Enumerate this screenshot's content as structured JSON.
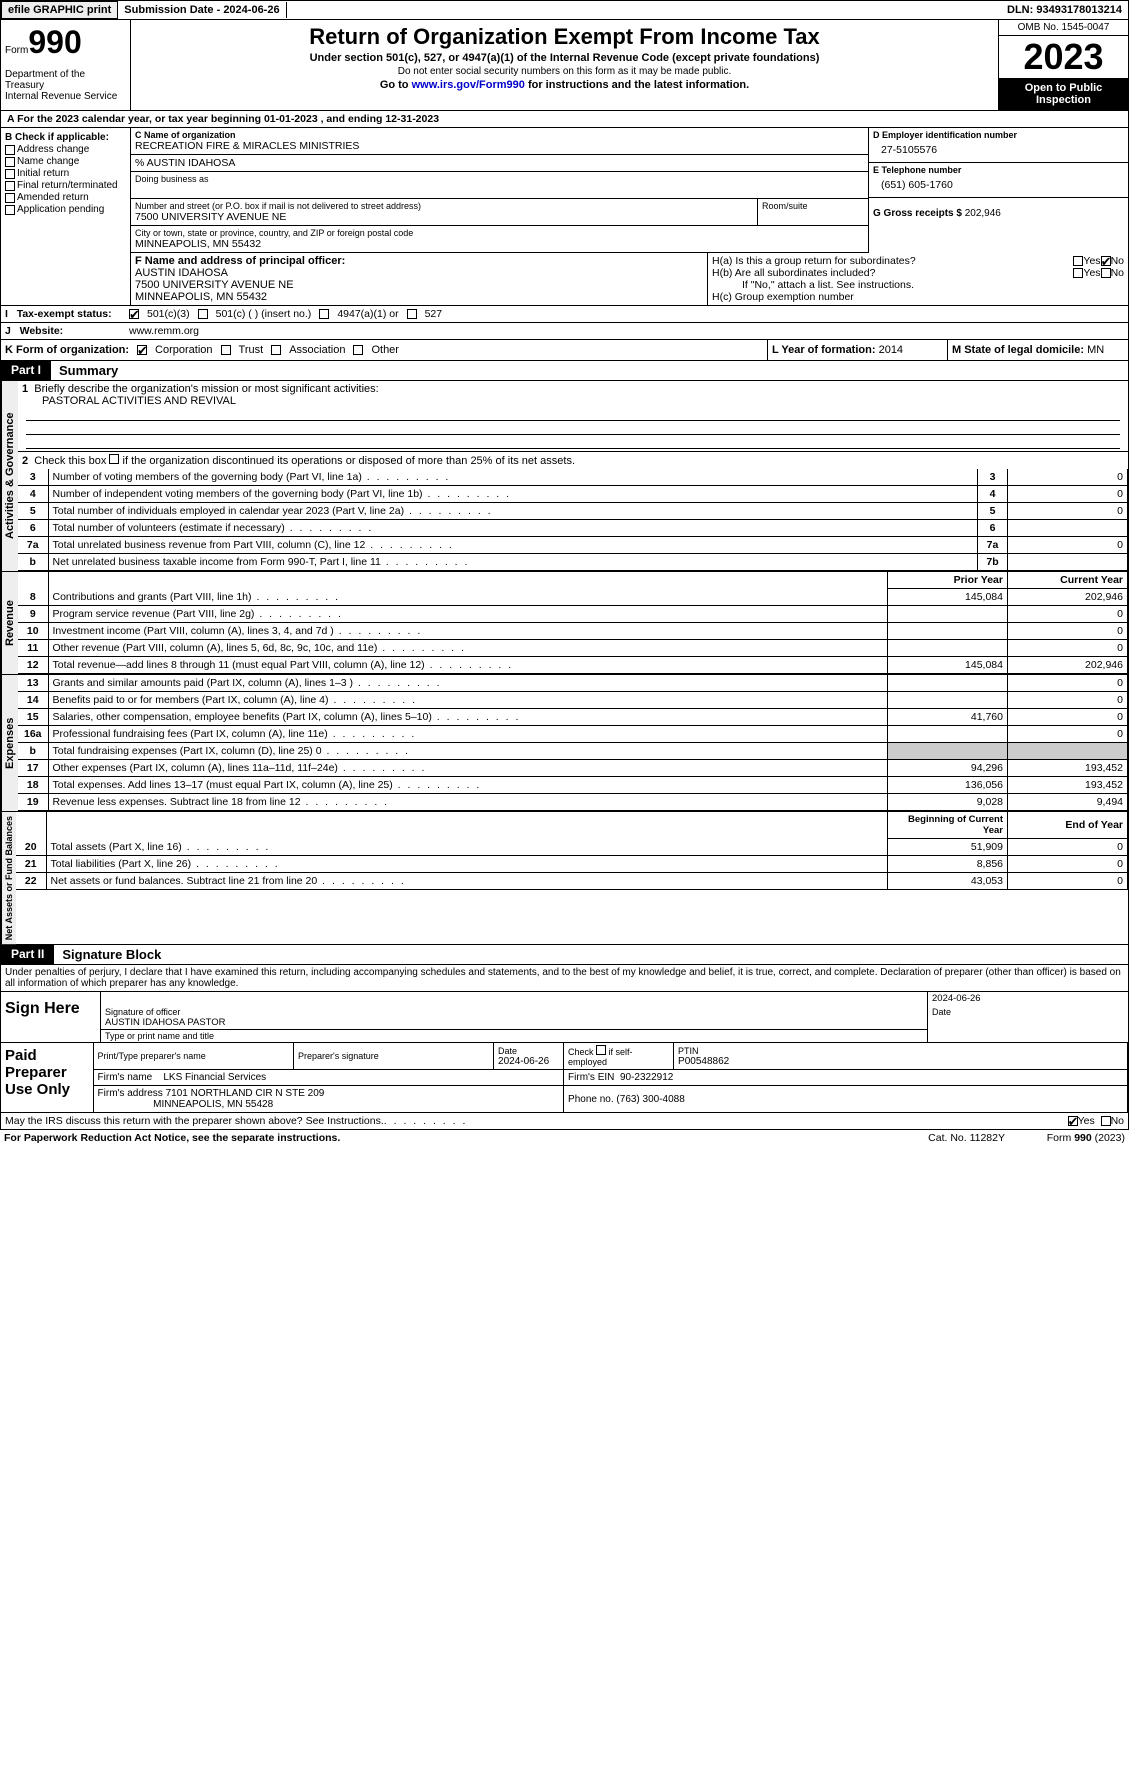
{
  "header": {
    "efile_btn": "efile GRAPHIC print",
    "submission_date_label": "Submission Date - 2024-06-26",
    "dln_label": "DLN: 93493178013214"
  },
  "form_header": {
    "form_label": "Form",
    "form_number": "990",
    "dept": "Department of the Treasury\nInternal Revenue Service",
    "title": "Return of Organization Exempt From Income Tax",
    "subtitle": "Under section 501(c), 527, or 4947(a)(1) of the Internal Revenue Code (except private foundations)",
    "note": "Do not enter social security numbers on this form as it may be made public.",
    "goto_prefix": "Go to ",
    "goto_link": "www.irs.gov/Form990",
    "goto_suffix": " for instructions and the latest information.",
    "omb": "OMB No. 1545-0047",
    "year": "2023",
    "open": "Open to Public Inspection"
  },
  "line_a": "A For the 2023 calendar year, or tax year beginning 01-01-2023    , and ending 12-31-2023",
  "box_b": {
    "header": "B Check if applicable:",
    "items": [
      "Address change",
      "Name change",
      "Initial return",
      "Final return/terminated",
      "Amended return",
      "Application pending"
    ]
  },
  "box_c": {
    "name_label": "C Name of organization",
    "name": "RECREATION FIRE & MIRACLES MINISTRIES",
    "care_of": "% AUSTIN IDAHOSA",
    "dba_label": "Doing business as",
    "street_label": "Number and street (or P.O. box if mail is not delivered to street address)",
    "room_label": "Room/suite",
    "street": "7500 UNIVERSITY AVENUE NE",
    "city_label": "City or town, state or province, country, and ZIP or foreign postal code",
    "city": "MINNEAPOLIS, MN  55432"
  },
  "box_d": {
    "label": "D Employer identification number",
    "value": "27-5105576"
  },
  "box_e": {
    "label": "E Telephone number",
    "value": "(651) 605-1760"
  },
  "box_g": {
    "label": "G Gross receipts $",
    "value": "202,946"
  },
  "box_f": {
    "label": "F  Name and address of principal officer:",
    "name": "AUSTIN IDAHOSA",
    "street": "7500 UNIVERSITY AVENUE NE",
    "city": "MINNEAPOLIS, MN  55432"
  },
  "box_h": {
    "a_label": "H(a)  Is this a group return for subordinates?",
    "b_label": "H(b)  Are all subordinates included?",
    "b_note": "If \"No,\" attach a list. See instructions.",
    "c_label": "H(c)  Group exemption number",
    "yes": "Yes",
    "no": "No"
  },
  "box_i": {
    "label": "Tax-exempt status:",
    "opt1": "501(c)(3)",
    "opt2": "501(c) (  ) (insert no.)",
    "opt3": "4947(a)(1) or",
    "opt4": "527"
  },
  "box_j": {
    "label": "Website:",
    "value": "www.remm.org"
  },
  "box_k": {
    "label": "K Form of organization:",
    "opts": [
      "Corporation",
      "Trust",
      "Association",
      "Other"
    ]
  },
  "box_l": {
    "label": "L Year of formation:",
    "value": "2014"
  },
  "box_m": {
    "label": "M State of legal domicile:",
    "value": "MN"
  },
  "part1": {
    "label": "Part I",
    "title": "Summary",
    "mission_label": "Briefly describe the organization's mission or most significant activities:",
    "mission": "PASTORAL ACTIVITIES AND REVIVAL",
    "line2": "Check this box      if the organization discontinued its operations or disposed of more than 25% of its net assets.",
    "sections": {
      "governance": "Activities & Governance",
      "revenue": "Revenue",
      "expenses": "Expenses",
      "netassets": "Net Assets or Fund Balances"
    },
    "rows_gov": [
      {
        "n": "3",
        "desc": "Number of voting members of the governing body (Part VI, line 1a)",
        "box": "3",
        "val": "0"
      },
      {
        "n": "4",
        "desc": "Number of independent voting members of the governing body (Part VI, line 1b)",
        "box": "4",
        "val": "0"
      },
      {
        "n": "5",
        "desc": "Total number of individuals employed in calendar year 2023 (Part V, line 2a)",
        "box": "5",
        "val": "0"
      },
      {
        "n": "6",
        "desc": "Total number of volunteers (estimate if necessary)",
        "box": "6",
        "val": ""
      },
      {
        "n": "7a",
        "desc": "Total unrelated business revenue from Part VIII, column (C), line 12",
        "box": "7a",
        "val": "0"
      },
      {
        "n": "b",
        "desc": "Net unrelated business taxable income from Form 990-T, Part I, line 11",
        "box": "7b",
        "val": ""
      }
    ],
    "col_prior": "Prior Year",
    "col_current": "Current Year",
    "rows_rev": [
      {
        "n": "8",
        "desc": "Contributions and grants (Part VIII, line 1h)",
        "prior": "145,084",
        "curr": "202,946"
      },
      {
        "n": "9",
        "desc": "Program service revenue (Part VIII, line 2g)",
        "prior": "",
        "curr": "0"
      },
      {
        "n": "10",
        "desc": "Investment income (Part VIII, column (A), lines 3, 4, and 7d )",
        "prior": "",
        "curr": "0"
      },
      {
        "n": "11",
        "desc": "Other revenue (Part VIII, column (A), lines 5, 6d, 8c, 9c, 10c, and 11e)",
        "prior": "",
        "curr": "0"
      },
      {
        "n": "12",
        "desc": "Total revenue—add lines 8 through 11 (must equal Part VIII, column (A), line 12)",
        "prior": "145,084",
        "curr": "202,946"
      }
    ],
    "rows_exp": [
      {
        "n": "13",
        "desc": "Grants and similar amounts paid (Part IX, column (A), lines 1–3 )",
        "prior": "",
        "curr": "0"
      },
      {
        "n": "14",
        "desc": "Benefits paid to or for members (Part IX, column (A), line 4)",
        "prior": "",
        "curr": "0"
      },
      {
        "n": "15",
        "desc": "Salaries, other compensation, employee benefits (Part IX, column (A), lines 5–10)",
        "prior": "41,760",
        "curr": "0"
      },
      {
        "n": "16a",
        "desc": "Professional fundraising fees (Part IX, column (A), line 11e)",
        "prior": "",
        "curr": "0"
      },
      {
        "n": "b",
        "desc": "Total fundraising expenses (Part IX, column (D), line 25) 0",
        "prior": "SHADED",
        "curr": "SHADED"
      },
      {
        "n": "17",
        "desc": "Other expenses (Part IX, column (A), lines 11a–11d, 11f–24e)",
        "prior": "94,296",
        "curr": "193,452"
      },
      {
        "n": "18",
        "desc": "Total expenses. Add lines 13–17 (must equal Part IX, column (A), line 25)",
        "prior": "136,056",
        "curr": "193,452"
      },
      {
        "n": "19",
        "desc": "Revenue less expenses. Subtract line 18 from line 12",
        "prior": "9,028",
        "curr": "9,494"
      }
    ],
    "col_begin": "Beginning of Current Year",
    "col_end": "End of Year",
    "rows_net": [
      {
        "n": "20",
        "desc": "Total assets (Part X, line 16)",
        "prior": "51,909",
        "curr": "0"
      },
      {
        "n": "21",
        "desc": "Total liabilities (Part X, line 26)",
        "prior": "8,856",
        "curr": "0"
      },
      {
        "n": "22",
        "desc": "Net assets or fund balances. Subtract line 21 from line 20",
        "prior": "43,053",
        "curr": "0"
      }
    ]
  },
  "part2": {
    "label": "Part II",
    "title": "Signature Block",
    "perjury": "Under penalties of perjury, I declare that I have examined this return, including accompanying schedules and statements, and to the best of my knowledge and belief, it is true, correct, and complete. Declaration of preparer (other than officer) is based on all information of which preparer has any knowledge.",
    "sign_here": "Sign Here",
    "sig_officer_label": "Signature of officer",
    "sig_date": "2024-06-26",
    "date_label": "Date",
    "officer_name": "AUSTIN IDAHOSA  PASTOR",
    "name_title_label": "Type or print name and title"
  },
  "paid_prep": {
    "label": "Paid Preparer Use Only",
    "print_label": "Print/Type preparer's name",
    "sig_label": "Preparer's signature",
    "date_label": "Date",
    "date": "2024-06-26",
    "check_label": "Check        if self-employed",
    "ptin_label": "PTIN",
    "ptin": "P00548862",
    "firm_name_label": "Firm's name",
    "firm_name": "LKS Financial Services",
    "firm_ein_label": "Firm's EIN",
    "firm_ein": "90-2322912",
    "firm_addr_label": "Firm's address",
    "firm_addr1": "7101 NORTHLAND CIR N STE 209",
    "firm_addr2": "MINNEAPOLIS, MN  55428",
    "phone_label": "Phone no.",
    "phone": "(763) 300-4088"
  },
  "discuss": {
    "text": "May the IRS discuss this return with the preparer shown above? See Instructions.",
    "yes": "Yes",
    "no": "No"
  },
  "footer": {
    "paperwork": "For Paperwork Reduction Act Notice, see the separate instructions.",
    "cat": "Cat. No. 11282Y",
    "form": "Form 990 (2023)"
  }
}
